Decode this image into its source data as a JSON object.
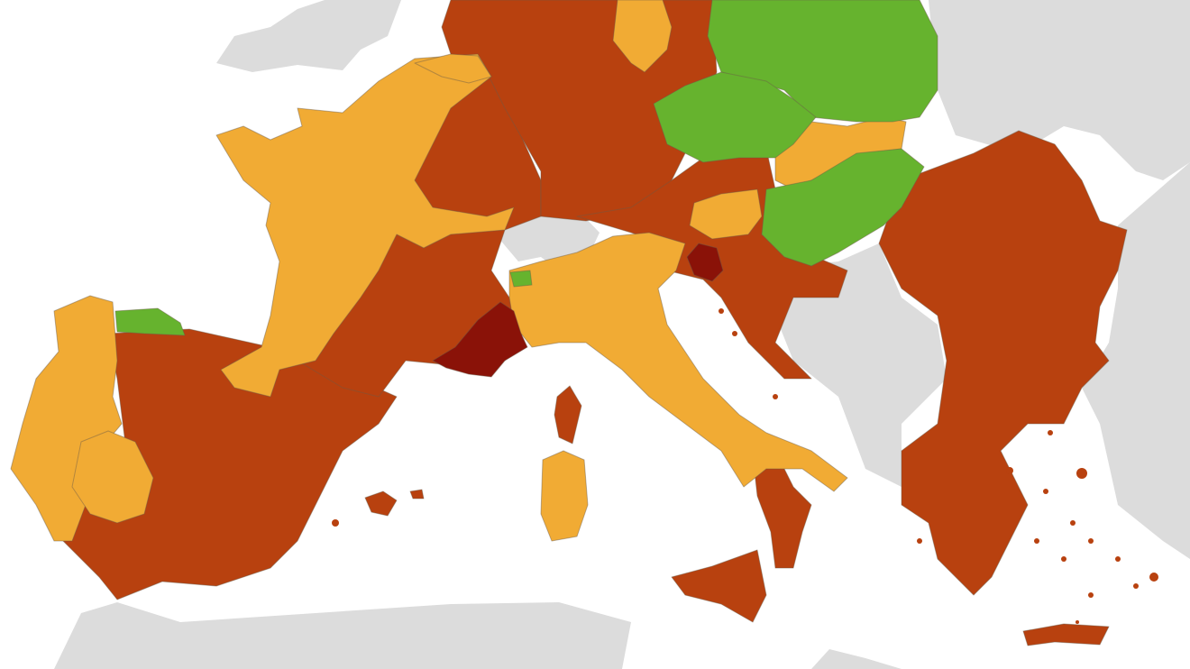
{
  "map": {
    "colors": {
      "sea": "#ffffff",
      "non_eu": "#dcdcdc",
      "red": "#b8410f",
      "dark_red": "#8a1208",
      "orange": "#f1ab34",
      "green": "#66b32e"
    }
  }
}
